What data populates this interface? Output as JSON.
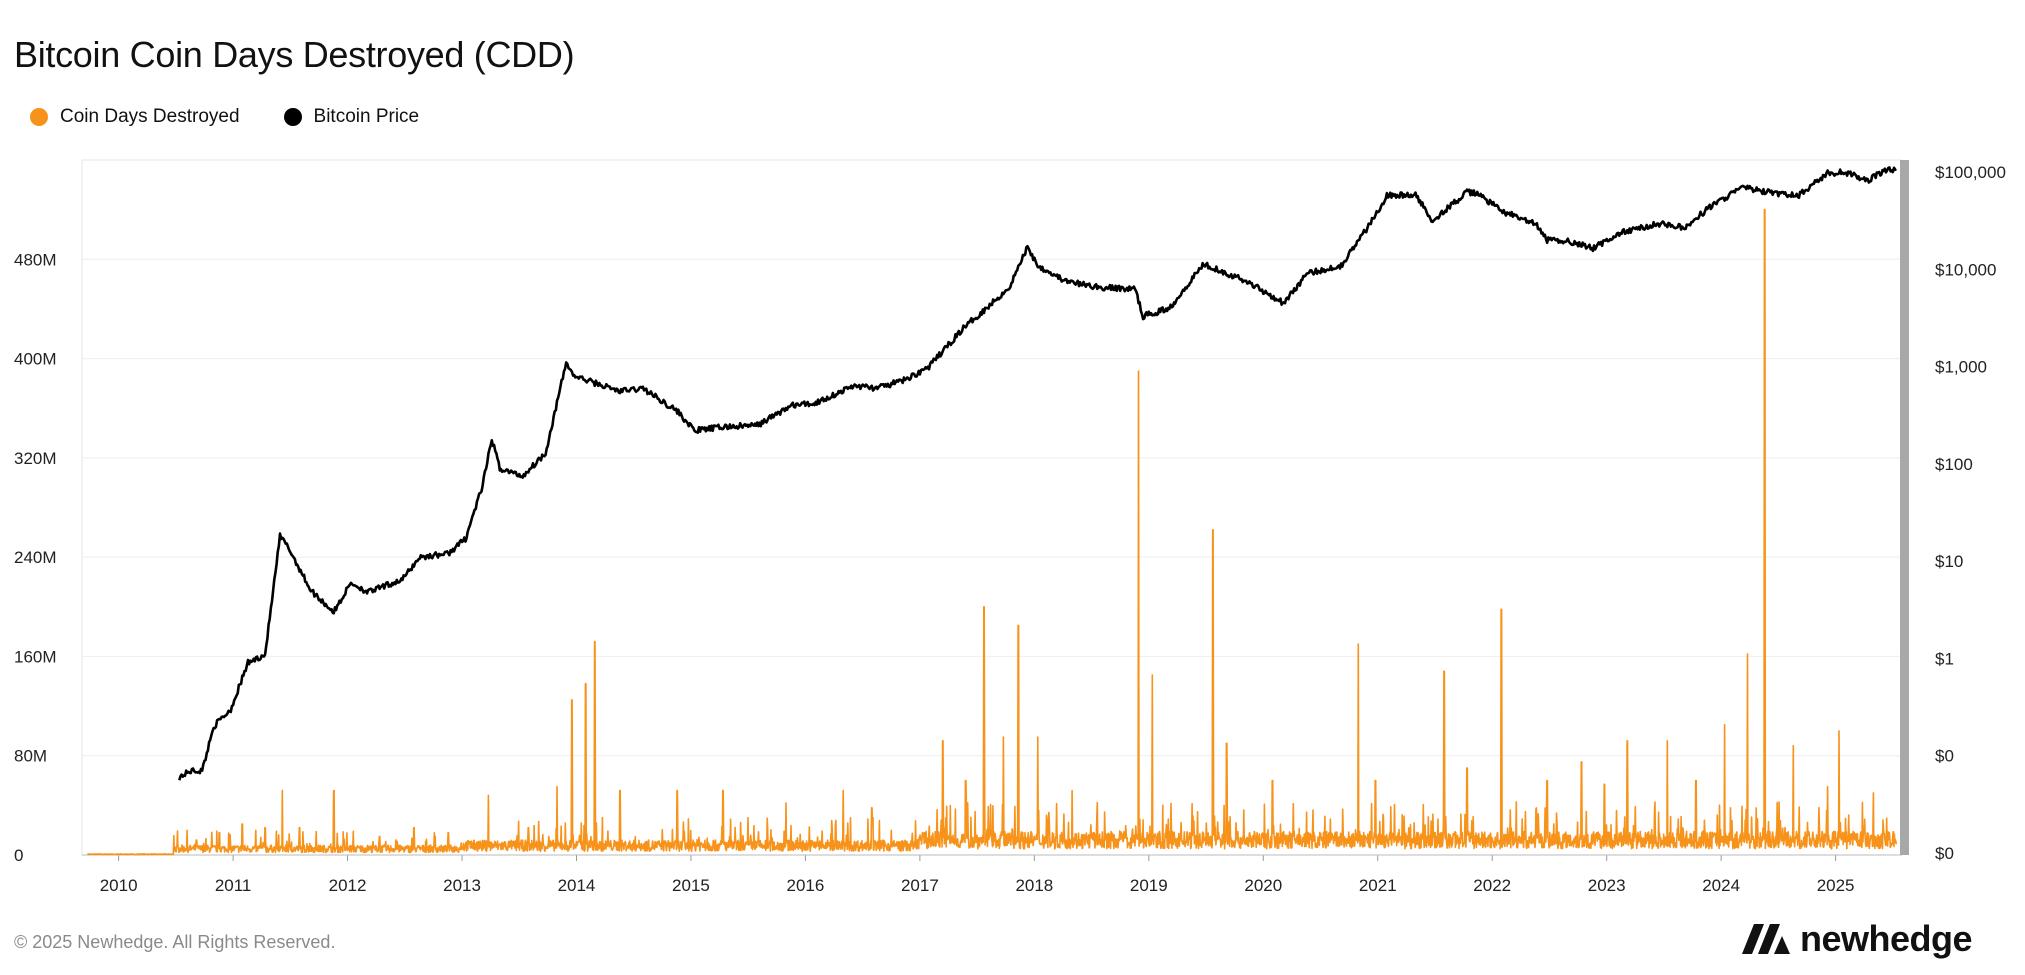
{
  "title": "Bitcoin Coin Days Destroyed (CDD)",
  "legend": [
    {
      "label": "Coin Days Destroyed",
      "color": "#F7931A"
    },
    {
      "label": "Bitcoin Price",
      "color": "#000000"
    }
  ],
  "footer": {
    "copyright": "© 2025 Newhedge. All Rights Reserved.",
    "brand": "newhedge",
    "brand_icon": "newhedge-logo-icon"
  },
  "chart_data": {
    "type": "line",
    "x_ticks": [
      "2010",
      "2011",
      "2012",
      "2013",
      "2014",
      "2015",
      "2016",
      "2017",
      "2018",
      "2019",
      "2020",
      "2021",
      "2022",
      "2023",
      "2024",
      "2025"
    ],
    "xlim": [
      2009.7,
      2025.6
    ],
    "y_left": {
      "ticks": [
        "0",
        "80M",
        "160M",
        "240M",
        "320M",
        "400M",
        "480M"
      ],
      "tick_values": [
        0,
        80,
        160,
        240,
        320,
        400,
        480
      ],
      "ylim": [
        0,
        560
      ],
      "unit": "M"
    },
    "y_right": {
      "scale": "log",
      "ticks": [
        "$0",
        "$0",
        "$1",
        "$10",
        "$100",
        "$1,000",
        "$10,000",
        "$100,000"
      ],
      "tick_values": [
        0.01,
        0.1,
        1,
        10,
        100,
        1000,
        10000,
        100000
      ]
    },
    "grid": true,
    "series": [
      {
        "name": "Coin Days Destroyed",
        "color": "#F7931A",
        "axis": "left",
        "spikes": [
          [
            2010.7,
            12
          ],
          [
            2010.9,
            18
          ],
          [
            2011.1,
            25
          ],
          [
            2011.3,
            22
          ],
          [
            2011.45,
            52
          ],
          [
            2011.6,
            22
          ],
          [
            2011.9,
            52
          ],
          [
            2012.3,
            15
          ],
          [
            2012.6,
            22
          ],
          [
            2012.9,
            18
          ],
          [
            2013.25,
            48
          ],
          [
            2013.6,
            22
          ],
          [
            2013.85,
            55
          ],
          [
            2013.98,
            125
          ],
          [
            2014.1,
            138
          ],
          [
            2014.18,
            172
          ],
          [
            2014.4,
            52
          ],
          [
            2014.9,
            52
          ],
          [
            2015.3,
            52
          ],
          [
            2015.85,
            42
          ],
          [
            2016.35,
            52
          ],
          [
            2016.6,
            38
          ],
          [
            2017.22,
            92
          ],
          [
            2017.42,
            60
          ],
          [
            2017.58,
            200
          ],
          [
            2017.75,
            95
          ],
          [
            2017.88,
            185
          ],
          [
            2018.05,
            95
          ],
          [
            2018.35,
            52
          ],
          [
            2018.93,
            390
          ],
          [
            2019.05,
            145
          ],
          [
            2019.58,
            262
          ],
          [
            2019.7,
            90
          ],
          [
            2020.1,
            60
          ],
          [
            2020.85,
            170
          ],
          [
            2021.0,
            60
          ],
          [
            2021.6,
            148
          ],
          [
            2021.8,
            70
          ],
          [
            2022.1,
            198
          ],
          [
            2022.5,
            60
          ],
          [
            2022.8,
            75
          ],
          [
            2023.0,
            57
          ],
          [
            2023.2,
            92
          ],
          [
            2023.55,
            92
          ],
          [
            2023.8,
            60
          ],
          [
            2024.05,
            105
          ],
          [
            2024.25,
            162
          ],
          [
            2024.4,
            520
          ],
          [
            2024.65,
            88
          ],
          [
            2024.95,
            55
          ],
          [
            2025.05,
            100
          ],
          [
            2025.35,
            50
          ]
        ]
      },
      {
        "name": "Bitcoin Price",
        "color": "#000000",
        "axis": "right",
        "points": [
          [
            2010.55,
            0.06
          ],
          [
            2010.65,
            0.07
          ],
          [
            2010.75,
            0.07
          ],
          [
            2010.85,
            0.2
          ],
          [
            2011.0,
            0.3
          ],
          [
            2011.15,
            0.9
          ],
          [
            2011.3,
            1.1
          ],
          [
            2011.43,
            18
          ],
          [
            2011.5,
            14
          ],
          [
            2011.7,
            5
          ],
          [
            2011.9,
            3
          ],
          [
            2012.05,
            6
          ],
          [
            2012.2,
            4.8
          ],
          [
            2012.5,
            6.5
          ],
          [
            2012.65,
            11
          ],
          [
            2012.9,
            12
          ],
          [
            2013.05,
            17
          ],
          [
            2013.2,
            60
          ],
          [
            2013.28,
            180
          ],
          [
            2013.35,
            90
          ],
          [
            2013.55,
            75
          ],
          [
            2013.75,
            130
          ],
          [
            2013.93,
            1100
          ],
          [
            2014.0,
            800
          ],
          [
            2014.15,
            700
          ],
          [
            2014.4,
            560
          ],
          [
            2014.6,
            600
          ],
          [
            2014.9,
            350
          ],
          [
            2015.05,
            220
          ],
          [
            2015.3,
            240
          ],
          [
            2015.6,
            250
          ],
          [
            2015.9,
            400
          ],
          [
            2016.1,
            420
          ],
          [
            2016.45,
            640
          ],
          [
            2016.65,
            600
          ],
          [
            2016.9,
            740
          ],
          [
            2017.1,
            1000
          ],
          [
            2017.4,
            2500
          ],
          [
            2017.6,
            4000
          ],
          [
            2017.8,
            6500
          ],
          [
            2017.96,
            17000
          ],
          [
            2018.05,
            11000
          ],
          [
            2018.3,
            7500
          ],
          [
            2018.6,
            6500
          ],
          [
            2018.9,
            6300
          ],
          [
            2018.97,
            3300
          ],
          [
            2019.2,
            4000
          ],
          [
            2019.5,
            11500
          ],
          [
            2019.9,
            7300
          ],
          [
            2020.2,
            4500
          ],
          [
            2020.4,
            9000
          ],
          [
            2020.7,
            11000
          ],
          [
            2020.95,
            29000
          ],
          [
            2021.1,
            58000
          ],
          [
            2021.35,
            58000
          ],
          [
            2021.5,
            32000
          ],
          [
            2021.8,
            62000
          ],
          [
            2021.9,
            60000
          ],
          [
            2022.1,
            40000
          ],
          [
            2022.4,
            29000
          ],
          [
            2022.5,
            20000
          ],
          [
            2022.7,
            19500
          ],
          [
            2022.9,
            16500
          ],
          [
            2023.15,
            24000
          ],
          [
            2023.5,
            30000
          ],
          [
            2023.7,
            26500
          ],
          [
            2023.9,
            42000
          ],
          [
            2024.2,
            70000
          ],
          [
            2024.5,
            60000
          ],
          [
            2024.7,
            58000
          ],
          [
            2024.95,
            98000
          ],
          [
            2025.1,
            100000
          ],
          [
            2025.3,
            82000
          ],
          [
            2025.45,
            105000
          ],
          [
            2025.55,
            108000
          ]
        ]
      }
    ]
  }
}
